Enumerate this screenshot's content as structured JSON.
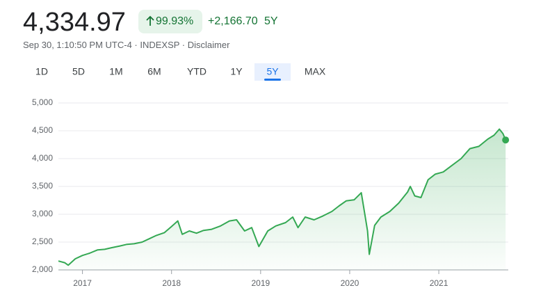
{
  "header": {
    "price": "4,334.97",
    "change_pct": "99.93%",
    "change": "+2,166.70",
    "period": "5Y",
    "meta": "Sep 30, 1:10:50 PM UTC-4 · INDEXSP · ",
    "disclaimer": "Disclaimer"
  },
  "tabs": [
    "1D",
    "5D",
    "1M",
    "6M",
    "YTD",
    "1Y",
    "5Y",
    "MAX"
  ],
  "chart_data": {
    "type": "line",
    "color": "#34a853",
    "grid": true,
    "x": [
      2016.73,
      2016.8,
      2016.84,
      2016.92,
      2017.0,
      2017.08,
      2017.17,
      2017.25,
      2017.33,
      2017.42,
      2017.5,
      2017.58,
      2017.67,
      2017.75,
      2017.83,
      2017.92,
      2018.0,
      2018.07,
      2018.12,
      2018.2,
      2018.28,
      2018.36,
      2018.45,
      2018.55,
      2018.65,
      2018.73,
      2018.82,
      2018.9,
      2018.98,
      2019.08,
      2019.17,
      2019.28,
      2019.36,
      2019.42,
      2019.5,
      2019.6,
      2019.7,
      2019.8,
      2019.88,
      2019.96,
      2020.05,
      2020.13,
      2020.17,
      2020.2,
      2020.22,
      2020.28,
      2020.35,
      2020.45,
      2020.55,
      2020.65,
      2020.68,
      2020.73,
      2020.8,
      2020.88,
      2020.96,
      2021.05,
      2021.15,
      2021.25,
      2021.35,
      2021.45,
      2021.55,
      2021.62,
      2021.68,
      2021.72,
      2021.75
    ],
    "values": [
      2160,
      2130,
      2085,
      2200,
      2260,
      2300,
      2360,
      2370,
      2400,
      2430,
      2460,
      2470,
      2500,
      2560,
      2620,
      2670,
      2780,
      2880,
      2640,
      2700,
      2660,
      2710,
      2730,
      2790,
      2880,
      2900,
      2700,
      2760,
      2420,
      2700,
      2790,
      2850,
      2950,
      2760,
      2950,
      2900,
      2970,
      3050,
      3150,
      3240,
      3260,
      3386,
      3000,
      2700,
      2280,
      2800,
      2950,
      3050,
      3200,
      3400,
      3500,
      3330,
      3300,
      3620,
      3720,
      3760,
      3880,
      4000,
      4180,
      4220,
      4350,
      4420,
      4530,
      4450,
      4334.97
    ],
    "xlim": [
      2016.73,
      2021.78
    ],
    "ylim": [
      2000,
      5000
    ],
    "xticks": [
      2017,
      2018,
      2019,
      2020,
      2021
    ],
    "yticks": [
      {
        "value": 2000,
        "label": "2,000"
      },
      {
        "value": 2500,
        "label": "2,500"
      },
      {
        "value": 3000,
        "label": "3,000"
      },
      {
        "value": 3500,
        "label": "3,500"
      },
      {
        "value": 4000,
        "label": "4,000"
      },
      {
        "value": 4500,
        "label": "4,500"
      },
      {
        "value": 5000,
        "label": "5,000"
      }
    ]
  }
}
